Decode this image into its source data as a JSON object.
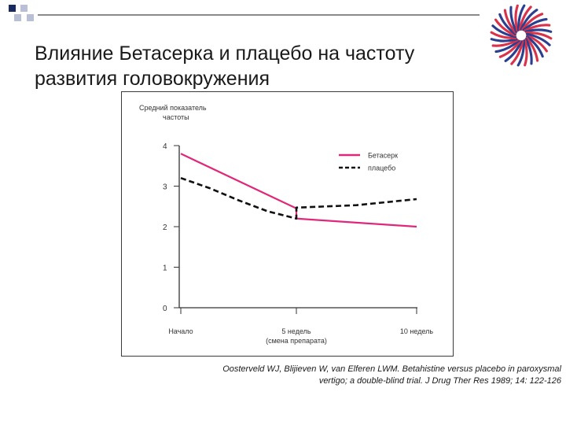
{
  "slide": {
    "title_line1": "Влияние Бетасерка и плацебо на частоту",
    "title_line2": "развития головокружения"
  },
  "logo_icon": "spiral-logo-icon",
  "chart_data": {
    "type": "line",
    "ylabel_line1": "Средний показатель",
    "ylabel_line2": "частоты",
    "ylim": [
      0,
      4
    ],
    "yticks": [
      0,
      1,
      2,
      3,
      4
    ],
    "categories": [
      {
        "line1": "Начало",
        "line2": ""
      },
      {
        "line1": "5 недель",
        "line2": "(смена препарата)"
      },
      {
        "line1": "10 недель",
        "line2": ""
      }
    ],
    "legend_position": "top-right",
    "grid": false,
    "series": [
      {
        "name": "Бетасерк",
        "color": "#e0287a",
        "style": "solid",
        "points": [
          [
            0,
            3.8
          ],
          [
            1,
            2.45
          ],
          [
            1,
            2.2
          ],
          [
            2,
            2.0
          ]
        ]
      },
      {
        "name": "плацебо",
        "color": "#111111",
        "style": "dashed",
        "points": [
          [
            0,
            3.2
          ],
          [
            0.25,
            2.95
          ],
          [
            0.5,
            2.65
          ],
          [
            0.75,
            2.38
          ],
          [
            1,
            2.2
          ],
          [
            1,
            2.47
          ],
          [
            1.5,
            2.53
          ],
          [
            2,
            2.68
          ]
        ]
      }
    ]
  },
  "citation": {
    "line1": "Oosterveld WJ, Blijieven W, van Elferen LWM. Betahistine versus placebo in paroxysmal",
    "line2": "vertigo; a double-blind trial. J Drug Ther Res 1989; 14: 122-126"
  }
}
